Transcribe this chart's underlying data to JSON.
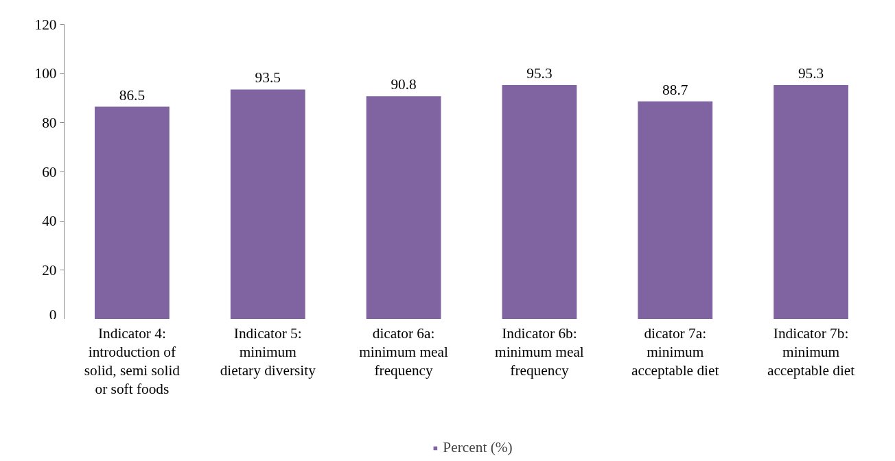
{
  "chart_data": {
    "type": "bar",
    "categories": [
      "Indicator 4:\nintroduction of\nsolid, semi solid\nor soft foods",
      "Indicator 5:\nminimum\ndietary diversity",
      "dicator 6a:\nminimum meal\nfrequency",
      "Indicator 6b:\nminimum meal\nfrequency",
      "dicator 7a:\nminimum\nacceptable diet",
      "Indicator 7b:\nminimum\nacceptable diet"
    ],
    "series": [
      {
        "name": "Percent (%)",
        "color": "#8064a2",
        "values": [
          86.5,
          93.5,
          90.8,
          95.3,
          88.7,
          95.3
        ]
      }
    ],
    "ylim": [
      0,
      120
    ],
    "yticks": [
      0,
      20,
      40,
      60,
      80,
      100,
      120
    ],
    "grid": false,
    "legend": "bottom",
    "data_labels": true
  }
}
